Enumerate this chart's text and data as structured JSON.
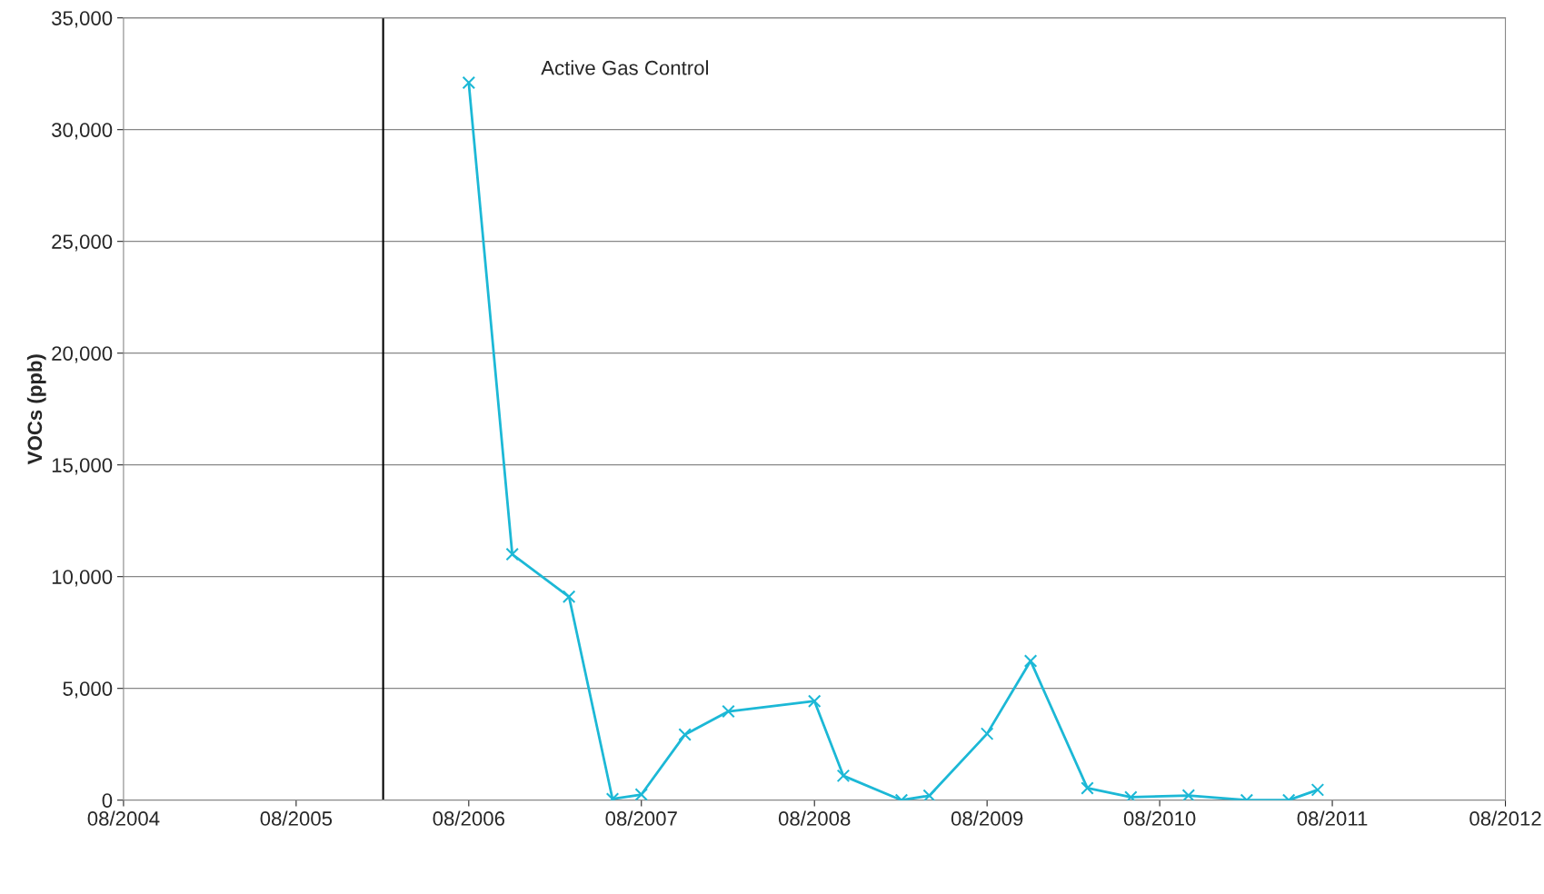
{
  "chart_data": {
    "type": "line",
    "ylabel": "VOCs (ppb)",
    "x": [
      "2006-08",
      "2006-11",
      "2007-03",
      "2007-06",
      "2007-08",
      "2007-11",
      "2008-02",
      "2008-08",
      "2008-10",
      "2009-02",
      "2009-04",
      "2009-08",
      "2009-11",
      "2010-03",
      "2010-06",
      "2010-10",
      "2011-02",
      "2011-05",
      "2011-07"
    ],
    "series": [
      {
        "color": "#1cb8d6",
        "values": [
          32100,
          11000,
          9100,
          50,
          250,
          2930,
          3970,
          4430,
          1090,
          0,
          200,
          2970,
          6230,
          540,
          130,
          210,
          0,
          0,
          460
        ]
      }
    ],
    "xlim": [
      "2004-08",
      "2012-08"
    ],
    "xticks": [
      {
        "value": "2004-08",
        "label": "08/2004"
      },
      {
        "value": "2005-08",
        "label": "08/2005"
      },
      {
        "value": "2006-08",
        "label": "08/2006"
      },
      {
        "value": "2007-08",
        "label": "08/2007"
      },
      {
        "value": "2008-08",
        "label": "08/2008"
      },
      {
        "value": "2009-08",
        "label": "08/2009"
      },
      {
        "value": "2010-08",
        "label": "08/2010"
      },
      {
        "value": "2011-08",
        "label": "08/2011"
      },
      {
        "value": "2012-08",
        "label": "08/2012"
      }
    ],
    "ylim": [
      0,
      35000
    ],
    "yticks": [
      {
        "value": 0,
        "label": "0"
      },
      {
        "value": 5000,
        "label": "5,000"
      },
      {
        "value": 10000,
        "label": "10,000"
      },
      {
        "value": 15000,
        "label": "15,000"
      },
      {
        "value": 20000,
        "label": "20,000"
      },
      {
        "value": 25000,
        "label": "25,000"
      },
      {
        "value": 30000,
        "label": "30,000"
      },
      {
        "value": 35000,
        "label": "35,000"
      }
    ],
    "ref_lines": [
      {
        "axis": "x",
        "value": "2006-02",
        "label": "Active Gas Control",
        "color": "#000000",
        "line_style": "solid"
      }
    ],
    "grid": "y",
    "marker": "cross",
    "line_style": "solid",
    "legend": false
  }
}
